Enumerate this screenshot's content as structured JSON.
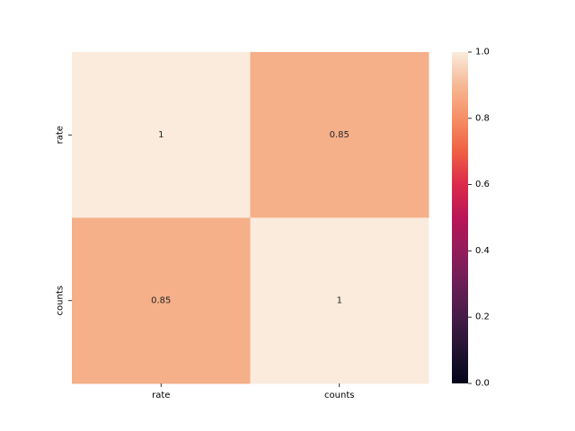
{
  "chart_data": {
    "type": "heatmap",
    "x_labels": [
      "rate",
      "counts"
    ],
    "y_labels": [
      "rate",
      "counts"
    ],
    "values": [
      [
        1,
        0.85
      ],
      [
        0.85,
        1
      ]
    ],
    "annotations": [
      [
        "1",
        "0.85"
      ],
      [
        "0.85",
        "1"
      ]
    ],
    "colormap": "rocket",
    "colorbar": {
      "min": 0.0,
      "max": 1.0,
      "ticks": [
        "0.0",
        "0.2",
        "0.4",
        "0.6",
        "0.8",
        "1.0"
      ]
    },
    "title": "",
    "xlabel": "",
    "ylabel": ""
  }
}
